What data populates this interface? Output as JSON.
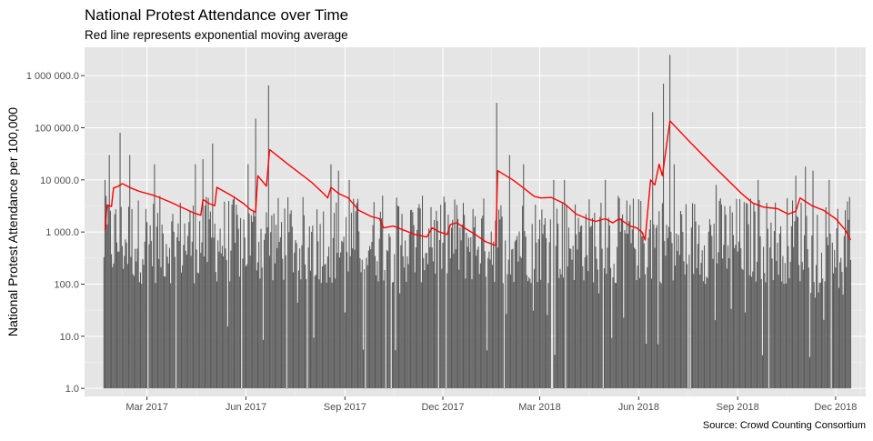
{
  "colors": {
    "panel_background": "#e5e5e5",
    "grid_major": "#ffffff",
    "grid_minor": "#f2f2f2",
    "bar_fill": "#595959",
    "ema_line": "#ff0000",
    "axis_text": "#4d4d4d",
    "title_text": "#000000"
  },
  "chart_data": {
    "type": "bar",
    "title": "National Protest Attendance over Time",
    "subtitle": "Red line represents exponential moving average",
    "xlabel": "",
    "ylabel": "National Protest Attendance per 100,000",
    "caption": "Source: Crowd Counting Consortium",
    "y_scale": "log10",
    "ylim": [
      0.7,
      3500000
    ],
    "xlim": [
      "2017-01-02",
      "2018-12-29"
    ],
    "y_ticks": [
      {
        "value": 1,
        "label": "1.0"
      },
      {
        "value": 10,
        "label": "10.0"
      },
      {
        "value": 100,
        "label": "100.0"
      },
      {
        "value": 1000,
        "label": "1 000.0"
      },
      {
        "value": 10000,
        "label": "10 000.0"
      },
      {
        "value": 100000,
        "label": "100 000.0"
      },
      {
        "value": 1000000,
        "label": "1 000 000.0"
      }
    ],
    "x_ticks": [
      {
        "date": "2017-03-01",
        "label": "Mar 2017"
      },
      {
        "date": "2017-06-01",
        "label": "Jun 2017"
      },
      {
        "date": "2017-09-01",
        "label": "Sep 2017"
      },
      {
        "date": "2017-12-01",
        "label": "Dec 2017"
      },
      {
        "date": "2018-03-01",
        "label": "Mar 2018"
      },
      {
        "date": "2018-06-01",
        "label": "Jun 2018"
      },
      {
        "date": "2018-09-01",
        "label": "Sep 2018"
      },
      {
        "date": "2018-12-01",
        "label": "Dec 2018"
      }
    ],
    "grid": true,
    "legend": "none",
    "bars": {
      "name": "",
      "start_date": "2017-01-20",
      "end_date": "2018-12-15",
      "peaks": [
        {
          "date": "2017-01-21",
          "value": 10000
        },
        {
          "date": "2017-01-25",
          "value": 30000
        },
        {
          "date": "2017-02-04",
          "value": 80000
        },
        {
          "date": "2017-02-13",
          "value": 30000
        },
        {
          "date": "2017-03-08",
          "value": 20000
        },
        {
          "date": "2017-04-15",
          "value": 20000
        },
        {
          "date": "2017-04-22",
          "value": 25000
        },
        {
          "date": "2017-05-01",
          "value": 50000
        },
        {
          "date": "2017-06-03",
          "value": 20000
        },
        {
          "date": "2017-06-10",
          "value": 150000
        },
        {
          "date": "2017-06-22",
          "value": 650000
        },
        {
          "date": "2017-08-19",
          "value": 20000
        },
        {
          "date": "2017-08-26",
          "value": 15000
        },
        {
          "date": "2017-09-05",
          "value": 10000
        },
        {
          "date": "2017-10-06",
          "value": 5000
        },
        {
          "date": "2017-11-20",
          "value": 3000
        },
        {
          "date": "2018-01-20",
          "value": 300000
        },
        {
          "date": "2018-02-01",
          "value": 30000
        },
        {
          "date": "2018-02-14",
          "value": 20000
        },
        {
          "date": "2018-03-14",
          "value": 10000
        },
        {
          "date": "2018-03-24",
          "value": 10000
        },
        {
          "date": "2018-05-01",
          "value": 10000
        },
        {
          "date": "2018-06-14",
          "value": 200000
        },
        {
          "date": "2018-06-24",
          "value": 700000
        },
        {
          "date": "2018-06-30",
          "value": 2500000
        },
        {
          "date": "2018-07-04",
          "value": 20000
        },
        {
          "date": "2018-08-12",
          "value": 8000
        },
        {
          "date": "2018-09-20",
          "value": 10000
        },
        {
          "date": "2018-10-25",
          "value": 12000
        },
        {
          "date": "2018-11-03",
          "value": 18000
        },
        {
          "date": "2018-11-10",
          "value": 15000
        },
        {
          "date": "2018-11-25",
          "value": 10000
        }
      ]
    },
    "series": [
      {
        "name": "",
        "type": "line",
        "points": [
          [
            "2017-01-21",
            1100
          ],
          [
            "2017-01-23",
            3300
          ],
          [
            "2017-01-27",
            3100
          ],
          [
            "2017-01-29",
            7000
          ],
          [
            "2017-02-02",
            7500
          ],
          [
            "2017-02-06",
            8500
          ],
          [
            "2017-02-14",
            7000
          ],
          [
            "2017-02-22",
            6000
          ],
          [
            "2017-03-08",
            5000
          ],
          [
            "2017-03-22",
            3800
          ],
          [
            "2017-04-05",
            2800
          ],
          [
            "2017-04-14",
            2300
          ],
          [
            "2017-04-20",
            2100
          ],
          [
            "2017-04-22",
            4200
          ],
          [
            "2017-04-28",
            3500
          ],
          [
            "2017-05-03",
            3200
          ],
          [
            "2017-05-05",
            7200
          ],
          [
            "2017-05-20",
            4800
          ],
          [
            "2017-05-30",
            3500
          ],
          [
            "2017-06-05",
            2700
          ],
          [
            "2017-06-10",
            2400
          ],
          [
            "2017-06-12",
            12000
          ],
          [
            "2017-06-20",
            7600
          ],
          [
            "2017-06-23",
            38000
          ],
          [
            "2017-07-10",
            20000
          ],
          [
            "2017-08-01",
            9000
          ],
          [
            "2017-08-12",
            5500
          ],
          [
            "2017-08-16",
            4500
          ],
          [
            "2017-08-19",
            7200
          ],
          [
            "2017-08-26",
            5500
          ],
          [
            "2017-09-04",
            4500
          ],
          [
            "2017-09-14",
            2600
          ],
          [
            "2017-09-25",
            2000
          ],
          [
            "2017-10-03",
            1800
          ],
          [
            "2017-10-07",
            1200
          ],
          [
            "2017-10-16",
            1300
          ],
          [
            "2017-10-25",
            1100
          ],
          [
            "2017-11-05",
            900
          ],
          [
            "2017-11-16",
            800
          ],
          [
            "2017-11-21",
            1200
          ],
          [
            "2017-11-28",
            1000
          ],
          [
            "2017-12-05",
            900
          ],
          [
            "2017-12-08",
            1400
          ],
          [
            "2017-12-14",
            1500
          ],
          [
            "2017-12-21",
            1200
          ],
          [
            "2017-12-31",
            900
          ],
          [
            "2018-01-10",
            650
          ],
          [
            "2018-01-19",
            550
          ],
          [
            "2018-01-21",
            15000
          ],
          [
            "2018-02-04",
            10000
          ],
          [
            "2018-02-14",
            7000
          ],
          [
            "2018-02-24",
            4800
          ],
          [
            "2018-03-02",
            4500
          ],
          [
            "2018-03-12",
            4600
          ],
          [
            "2018-03-24",
            3500
          ],
          [
            "2018-04-04",
            2200
          ],
          [
            "2018-04-14",
            1800
          ],
          [
            "2018-04-22",
            1600
          ],
          [
            "2018-05-01",
            1800
          ],
          [
            "2018-05-08",
            1500
          ],
          [
            "2018-05-14",
            1800
          ],
          [
            "2018-05-24",
            1300
          ],
          [
            "2018-05-30",
            1200
          ],
          [
            "2018-06-04",
            1000
          ],
          [
            "2018-06-07",
            700
          ],
          [
            "2018-06-12",
            10000
          ],
          [
            "2018-06-16",
            8000
          ],
          [
            "2018-06-20",
            20000
          ],
          [
            "2018-06-23",
            12000
          ],
          [
            "2018-06-30",
            135000
          ],
          [
            "2018-07-20",
            50000
          ],
          [
            "2018-08-10",
            18000
          ],
          [
            "2018-09-05",
            5400
          ],
          [
            "2018-09-15",
            3600
          ],
          [
            "2018-09-25",
            3000
          ],
          [
            "2018-10-08",
            2800
          ],
          [
            "2018-10-18",
            2200
          ],
          [
            "2018-10-25",
            2500
          ],
          [
            "2018-10-29",
            4500
          ],
          [
            "2018-11-09",
            3200
          ],
          [
            "2018-11-20",
            2600
          ],
          [
            "2018-12-01",
            1800
          ],
          [
            "2018-12-10",
            1100
          ],
          [
            "2018-12-15",
            700
          ]
        ]
      }
    ]
  }
}
